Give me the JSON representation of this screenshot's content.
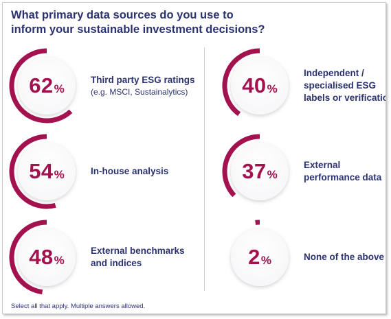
{
  "title": "What primary data sources do you use to\ninform your sustainable investment decisions?",
  "footnote": "Select all that apply. Multiple answers allowed.",
  "colors": {
    "accent": "#a3124f",
    "text": "#2b3270",
    "circle_fill": "#f7f7f9"
  },
  "chart_data": {
    "type": "donut-progress",
    "unit": "%",
    "items": [
      {
        "label": "Third party ESG ratings",
        "sublabel": "(e.g. MSCI, Sustainalytics)",
        "value": 62,
        "value_text": "62"
      },
      {
        "label": "In-house analysis",
        "sublabel": "",
        "value": 54,
        "value_text": "54"
      },
      {
        "label": "External benchmarks\nand indices",
        "sublabel": "",
        "value": 48,
        "value_text": "48"
      },
      {
        "label": "Independent /\nspecialised ESG\nlabels or verifications",
        "sublabel": "",
        "value": 40,
        "value_text": "40"
      },
      {
        "label": "External\nperformance data",
        "sublabel": "",
        "value": 37,
        "value_text": "37"
      },
      {
        "label": "None of the above",
        "sublabel": "",
        "value": 2,
        "value_text": "2"
      }
    ]
  }
}
